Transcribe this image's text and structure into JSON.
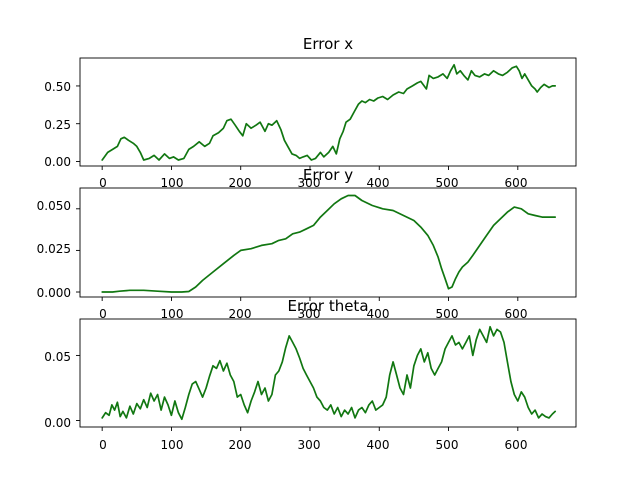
{
  "line_color": "#117711",
  "chart_data": [
    {
      "type": "line",
      "title": "Error x",
      "xlim": [
        -32,
        684
      ],
      "ylim": [
        -0.03,
        0.685
      ],
      "xticks": [
        0,
        100,
        200,
        300,
        400,
        500,
        600
      ],
      "xtick_labels": [
        "0",
        "100",
        "200",
        "300",
        "400",
        "500",
        "600"
      ],
      "yticks": [
        0,
        0.25,
        0.5
      ],
      "ytick_labels": [
        "0.00",
        "0.25",
        "0.50"
      ],
      "grid": false,
      "series": [
        {
          "color": "#117711",
          "x": [
            0,
            8,
            15,
            22,
            27,
            32,
            38,
            45,
            50,
            55,
            60,
            68,
            75,
            82,
            90,
            97,
            103,
            110,
            118,
            125,
            132,
            140,
            148,
            155,
            160,
            168,
            175,
            180,
            186,
            192,
            198,
            203,
            208,
            215,
            222,
            228,
            235,
            240,
            245,
            252,
            258,
            263,
            268,
            274,
            280,
            285,
            290,
            296,
            302,
            308,
            315,
            320,
            327,
            333,
            338,
            343,
            348,
            352,
            358,
            364,
            370,
            375,
            380,
            386,
            392,
            398,
            405,
            412,
            420,
            428,
            435,
            440,
            448,
            455,
            460,
            468,
            472,
            478,
            485,
            492,
            498,
            503,
            508,
            512,
            517,
            522,
            528,
            533,
            538,
            545,
            552,
            558,
            565,
            572,
            578,
            585,
            592,
            598,
            602,
            606,
            610,
            615,
            620,
            625,
            628,
            633,
            638,
            645,
            650,
            654
          ],
          "y": [
            0.01,
            0.06,
            0.08,
            0.1,
            0.15,
            0.16,
            0.14,
            0.12,
            0.1,
            0.06,
            0.01,
            0.02,
            0.04,
            0.01,
            0.05,
            0.02,
            0.03,
            0.01,
            0.02,
            0.08,
            0.1,
            0.13,
            0.1,
            0.12,
            0.17,
            0.19,
            0.22,
            0.27,
            0.28,
            0.24,
            0.2,
            0.17,
            0.25,
            0.22,
            0.24,
            0.26,
            0.2,
            0.25,
            0.24,
            0.27,
            0.21,
            0.14,
            0.1,
            0.05,
            0.04,
            0.02,
            0.03,
            0.04,
            0.01,
            0.02,
            0.06,
            0.03,
            0.06,
            0.1,
            0.05,
            0.15,
            0.2,
            0.26,
            0.28,
            0.33,
            0.38,
            0.4,
            0.39,
            0.41,
            0.4,
            0.42,
            0.43,
            0.41,
            0.44,
            0.46,
            0.45,
            0.48,
            0.5,
            0.52,
            0.53,
            0.48,
            0.57,
            0.55,
            0.56,
            0.58,
            0.55,
            0.6,
            0.64,
            0.58,
            0.6,
            0.57,
            0.54,
            0.6,
            0.57,
            0.56,
            0.58,
            0.57,
            0.6,
            0.58,
            0.57,
            0.59,
            0.62,
            0.63,
            0.6,
            0.55,
            0.58,
            0.54,
            0.5,
            0.48,
            0.46,
            0.49,
            0.51,
            0.49,
            0.5,
            0.5
          ]
        }
      ]
    },
    {
      "type": "line",
      "title": "Error y",
      "xlim": [
        -32,
        684
      ],
      "ylim": [
        -0.003,
        0.0625
      ],
      "xticks": [
        0,
        100,
        200,
        300,
        400,
        500,
        600
      ],
      "xtick_labels": [
        "0",
        "100",
        "200",
        "300",
        "400",
        "500",
        "600"
      ],
      "yticks": [
        0,
        0.025,
        0.05
      ],
      "ytick_labels": [
        "0.000",
        "0.025",
        "0.050"
      ],
      "grid": false,
      "series": [
        {
          "color": "#117711",
          "x": [
            0,
            15,
            25,
            40,
            60,
            80,
            100,
            115,
            125,
            135,
            145,
            160,
            175,
            190,
            200,
            215,
            230,
            245,
            255,
            265,
            275,
            285,
            295,
            305,
            315,
            325,
            335,
            345,
            355,
            365,
            375,
            390,
            405,
            420,
            435,
            450,
            460,
            470,
            478,
            485,
            490,
            495,
            500,
            505,
            510,
            515,
            520,
            528,
            535,
            545,
            555,
            565,
            575,
            585,
            595,
            605,
            615,
            625,
            635,
            645,
            654
          ],
          "y": [
            0.0,
            0.0,
            0.0005,
            0.001,
            0.001,
            0.0005,
            0.0,
            0.0,
            0.0003,
            0.003,
            0.007,
            0.012,
            0.017,
            0.022,
            0.025,
            0.026,
            0.028,
            0.029,
            0.031,
            0.032,
            0.035,
            0.036,
            0.038,
            0.04,
            0.045,
            0.049,
            0.053,
            0.056,
            0.058,
            0.058,
            0.055,
            0.052,
            0.05,
            0.049,
            0.046,
            0.043,
            0.039,
            0.034,
            0.028,
            0.021,
            0.014,
            0.008,
            0.002,
            0.003,
            0.008,
            0.012,
            0.015,
            0.018,
            0.022,
            0.028,
            0.034,
            0.04,
            0.044,
            0.048,
            0.051,
            0.05,
            0.047,
            0.046,
            0.045,
            0.045,
            0.045
          ]
        }
      ]
    },
    {
      "type": "line",
      "title": "Error theta",
      "xlim": [
        -32,
        684
      ],
      "ylim": [
        -0.005,
        0.078
      ],
      "xticks": [
        0,
        100,
        200,
        300,
        400,
        500,
        600
      ],
      "xtick_labels": [
        "0",
        "100",
        "200",
        "300",
        "400",
        "500",
        "600"
      ],
      "yticks": [
        0,
        0.05
      ],
      "ytick_labels": [
        "0.00",
        "0.05"
      ],
      "grid": false,
      "series": [
        {
          "color": "#117711",
          "x": [
            0,
            5,
            10,
            14,
            18,
            22,
            26,
            30,
            35,
            40,
            45,
            50,
            55,
            60,
            65,
            70,
            75,
            80,
            85,
            90,
            95,
            100,
            105,
            110,
            115,
            120,
            125,
            130,
            135,
            140,
            145,
            150,
            155,
            160,
            165,
            170,
            175,
            180,
            185,
            190,
            195,
            200,
            205,
            210,
            215,
            220,
            225,
            230,
            235,
            240,
            245,
            250,
            255,
            260,
            265,
            270,
            275,
            280,
            285,
            290,
            295,
            300,
            305,
            310,
            315,
            320,
            325,
            330,
            335,
            340,
            345,
            350,
            355,
            360,
            365,
            370,
            375,
            380,
            385,
            390,
            395,
            400,
            405,
            410,
            415,
            420,
            425,
            430,
            435,
            440,
            445,
            450,
            455,
            460,
            465,
            470,
            475,
            480,
            485,
            490,
            495,
            500,
            505,
            510,
            515,
            520,
            525,
            530,
            535,
            540,
            545,
            550,
            555,
            560,
            565,
            570,
            575,
            580,
            585,
            590,
            595,
            600,
            605,
            610,
            615,
            620,
            625,
            630,
            635,
            640,
            645,
            650,
            654
          ],
          "y": [
            0.002,
            0.006,
            0.004,
            0.012,
            0.008,
            0.014,
            0.003,
            0.007,
            0.002,
            0.011,
            0.005,
            0.013,
            0.009,
            0.016,
            0.01,
            0.021,
            0.015,
            0.02,
            0.008,
            0.018,
            0.012,
            0.004,
            0.015,
            0.006,
            0.001,
            0.01,
            0.02,
            0.028,
            0.03,
            0.024,
            0.018,
            0.025,
            0.034,
            0.042,
            0.04,
            0.046,
            0.038,
            0.044,
            0.035,
            0.03,
            0.018,
            0.02,
            0.012,
            0.006,
            0.015,
            0.022,
            0.03,
            0.02,
            0.025,
            0.015,
            0.02,
            0.035,
            0.038,
            0.045,
            0.056,
            0.065,
            0.06,
            0.055,
            0.048,
            0.04,
            0.035,
            0.03,
            0.025,
            0.018,
            0.015,
            0.01,
            0.008,
            0.012,
            0.005,
            0.01,
            0.003,
            0.008,
            0.005,
            0.01,
            0.002,
            0.008,
            0.01,
            0.006,
            0.012,
            0.015,
            0.008,
            0.01,
            0.012,
            0.018,
            0.035,
            0.045,
            0.035,
            0.025,
            0.02,
            0.035,
            0.025,
            0.042,
            0.05,
            0.055,
            0.045,
            0.052,
            0.04,
            0.035,
            0.04,
            0.045,
            0.055,
            0.06,
            0.065,
            0.058,
            0.06,
            0.055,
            0.06,
            0.065,
            0.05,
            0.062,
            0.07,
            0.065,
            0.06,
            0.072,
            0.065,
            0.07,
            0.068,
            0.06,
            0.045,
            0.03,
            0.02,
            0.015,
            0.022,
            0.018,
            0.01,
            0.005,
            0.008,
            0.002,
            0.005,
            0.003,
            0.002,
            0.005,
            0.007
          ]
        }
      ]
    }
  ]
}
